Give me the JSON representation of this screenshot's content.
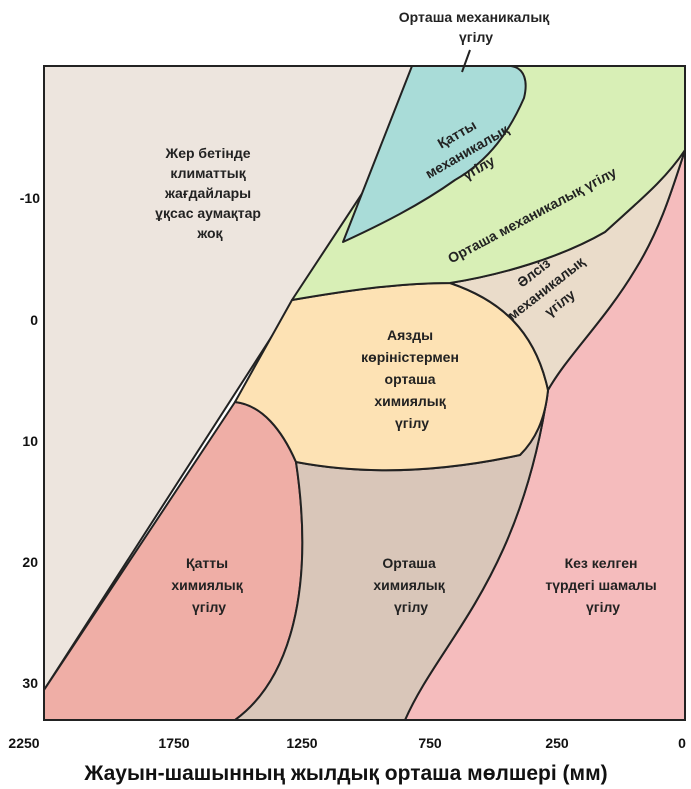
{
  "diagram": {
    "x_axis": {
      "title": "Жауын-шашынның жылдық орташа мөлшері (мм)",
      "ticks": [
        "2250",
        "1750",
        "1250",
        "750",
        "250",
        "0"
      ]
    },
    "y_axis": {
      "ticks": [
        "-10",
        "0",
        "10",
        "20",
        "30"
      ]
    },
    "regions": {
      "none_lines": [
        "Жер бетінде",
        "климаттық",
        "жағдайлары",
        "ұқсас аумақтар",
        "жоқ"
      ],
      "top_moderate_mech_lines": [
        "Орташа механикалық",
        "үгілу"
      ],
      "strong_mech_lines": [
        "Қатты",
        "механикалық",
        "үгілу"
      ],
      "moderate_mech_band": "Орташа механикалық үгілу",
      "weak_mech_lines": [
        "Әлсіз",
        "механикалық",
        "үгілу"
      ],
      "frost_chem_lines": [
        "Аязды",
        "көріністермен",
        "орташа",
        "химиялық",
        "үгілу"
      ],
      "strong_chem_lines": [
        "Қатты",
        "химиялық",
        "үгілу"
      ],
      "moderate_chem_lines": [
        "Орташа",
        "химиялық",
        "үгілу"
      ],
      "slight_lines": [
        "Кез келген",
        "түрдегі шамалы",
        "үгілу"
      ]
    },
    "colors": {
      "none": "#ede5de",
      "strong_mech": "#a9dcd8",
      "moderate_mech": "#d8efb6",
      "weak_mech": "#eadcca",
      "frost_chem": "#fde2b4",
      "strong_chem": "#efaea6",
      "moderate_chem": "#d9c6b9",
      "slight": "#f5bcbd"
    }
  }
}
